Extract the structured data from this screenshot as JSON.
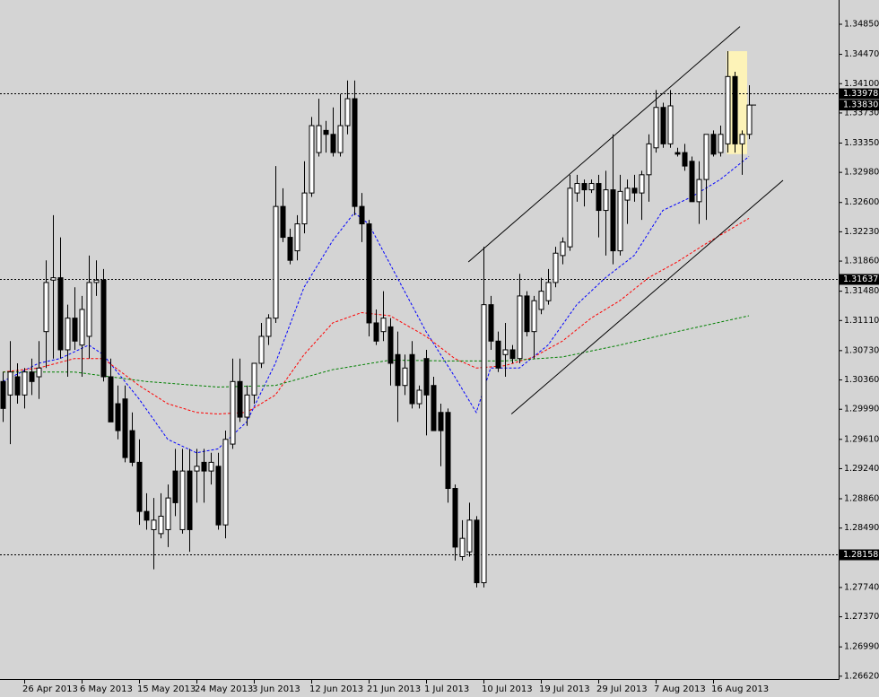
{
  "chart_data": {
    "type": "candlestick",
    "categories": [
      null,
      null,
      null,
      "26 Apr 2013",
      null,
      null,
      null,
      null,
      null,
      null,
      null,
      "6 May 2013",
      null,
      null,
      null,
      null,
      null,
      null,
      null,
      "15 May 2013",
      null,
      null,
      null,
      null,
      null,
      null,
      null,
      "24 May 2013",
      null,
      null,
      null,
      null,
      null,
      null,
      null,
      "3 Jun 2013",
      null,
      null,
      null,
      null,
      null,
      null,
      null,
      "12 Jun 2013",
      null,
      null,
      null,
      null,
      null,
      null,
      null,
      "21 Jun 2013",
      null,
      null,
      null,
      null,
      null,
      null,
      null,
      "1 Jul 2013",
      null,
      null,
      null,
      null,
      null,
      null,
      null,
      "10 Jul 2013",
      null,
      null,
      null,
      null,
      null,
      null,
      null,
      "19 Jul 2013",
      null,
      null,
      null,
      null,
      null,
      null,
      null,
      "29 Jul 2013",
      null,
      null,
      null,
      null,
      null,
      null,
      null,
      "7 Aug 2013",
      null,
      null,
      null,
      null,
      null,
      null,
      null,
      "16 Aug 2013",
      null,
      null,
      null,
      null,
      null
    ],
    "open": [
      1.3034,
      1.3017,
      1.304,
      1.3017,
      1.3046,
      1.304,
      1.3097,
      1.3162,
      1.3165,
      1.3074,
      1.3114,
      1.308,
      1.3091,
      1.3159,
      1.3162,
      1.304,
      1.3006,
      1.3012,
      1.2972,
      1.2932,
      1.287,
      1.2847,
      1.2842,
      1.2847,
      1.2921,
      1.2847,
      1.2921,
      1.2921,
      1.2932,
      1.2921,
      1.2927,
      1.2853,
      1.2955,
      1.3034,
      1.2989,
      1.3017,
      1.3057,
      1.3091,
      1.3114,
      1.3255,
      1.3216,
      1.3199,
      1.3233,
      1.3272,
      1.3323,
      1.3351,
      1.3346,
      1.3323,
      1.3357,
      1.3391,
      1.3255,
      1.3233,
      1.3108,
      1.3097,
      1.3103,
      1.3068,
      1.3029,
      1.3068,
      1.3006,
      1.3063,
      1.3029,
      1.2995,
      1.2995,
      1.2899,
      1.2813,
      1.2819,
      1.2859,
      1.278,
      1.3131,
      1.3085,
      1.3068,
      1.3074,
      1.3063,
      1.3142,
      1.3097,
      1.3125,
      1.3136,
      1.3159,
      1.3193,
      1.3204,
      1.3272,
      1.3284,
      1.3276,
      1.3284,
      1.325,
      1.3276,
      1.3199,
      1.3263,
      1.3278,
      1.3272,
      1.3295,
      1.3329,
      1.338,
      1.3334,
      1.3323,
      1.3323,
      1.3312,
      1.3261,
      1.3289,
      1.3346,
      1.3323,
      1.3334,
      1.3419,
      1.3334,
      1.3346
    ],
    "high": [
      1.3046,
      1.3085,
      1.3057,
      1.3051,
      1.3063,
      1.3085,
      1.3187,
      1.3244,
      1.3216,
      1.3131,
      1.3153,
      1.3142,
      1.3193,
      1.3187,
      1.3176,
      1.3063,
      1.3029,
      1.3029,
      1.2995,
      1.2961,
      1.2893,
      1.2887,
      1.2893,
      1.2904,
      1.2949,
      1.2949,
      1.2949,
      1.2949,
      1.2949,
      1.2944,
      1.2944,
      1.2972,
      1.3063,
      1.3063,
      1.3029,
      1.3057,
      1.3108,
      1.3119,
      1.3306,
      1.3278,
      1.3227,
      1.3244,
      1.3312,
      1.3368,
      1.3391,
      1.3363,
      1.338,
      1.3397,
      1.3414,
      1.3414,
      1.3272,
      1.3238,
      1.3125,
      1.3148,
      1.3114,
      1.3097,
      1.3068,
      1.3085,
      1.3029,
      1.3074,
      1.304,
      1.3006,
      1.3,
      1.2904,
      1.2859,
      1.2881,
      1.2864,
      1.3204,
      1.3142,
      1.3097,
      1.3108,
      1.308,
      1.317,
      1.3148,
      1.3142,
      1.3165,
      1.3176,
      1.3204,
      1.3216,
      1.3295,
      1.3295,
      1.3289,
      1.3289,
      1.3295,
      1.33,
      1.3346,
      1.3295,
      1.3289,
      1.3295,
      1.33,
      1.3346,
      1.3402,
      1.3386,
      1.3402,
      1.3329,
      1.3334,
      1.3318,
      1.3312,
      1.3346,
      1.3351,
      1.3357,
      1.3451,
      1.3425,
      1.3351,
      1.3408
    ],
    "low": [
      1.2983,
      1.2955,
      1.3006,
      1.3,
      1.3017,
      1.3012,
      1.3051,
      1.3063,
      1.3063,
      1.304,
      1.3074,
      1.304,
      1.3063,
      1.3142,
      1.3034,
      1.2983,
      1.2961,
      1.2932,
      1.2927,
      1.2853,
      1.2847,
      1.2797,
      1.2836,
      1.2825,
      1.2864,
      1.2842,
      1.2819,
      1.2881,
      1.2881,
      1.2904,
      1.2847,
      1.2836,
      1.2949,
      1.2983,
      1.2978,
      1.3006,
      1.3051,
      1.308,
      1.3108,
      1.321,
      1.3182,
      1.3187,
      1.3221,
      1.3267,
      1.3318,
      1.3323,
      1.3318,
      1.3318,
      1.3346,
      1.3244,
      1.321,
      1.3091,
      1.308,
      1.3085,
      1.3029,
      1.2983,
      1.3017,
      1.3,
      1.3,
      1.2966,
      1.2972,
      1.2927,
      1.2881,
      1.2808,
      1.2808,
      1.2813,
      1.2774,
      1.2774,
      1.3074,
      1.3046,
      1.304,
      1.3057,
      1.3057,
      1.3091,
      1.3063,
      1.3119,
      1.3131,
      1.3153,
      1.3182,
      1.3199,
      1.3261,
      1.3255,
      1.3272,
      1.3216,
      1.3193,
      1.3182,
      1.3193,
      1.3233,
      1.3261,
      1.3238,
      1.3261,
      1.3323,
      1.3329,
      1.3329,
      1.3318,
      1.33,
      1.3261,
      1.3233,
      1.3238,
      1.3318,
      1.3318,
      1.3323,
      1.3323,
      1.3295,
      1.334
    ],
    "close": [
      1.3,
      1.3046,
      1.3017,
      1.3046,
      1.3034,
      1.3051,
      1.3159,
      1.3165,
      1.3074,
      1.3114,
      1.3085,
      1.3125,
      1.3159,
      1.3162,
      1.304,
      1.2983,
      1.2972,
      1.2938,
      1.2932,
      1.287,
      1.2859,
      1.2859,
      1.2864,
      1.2887,
      1.2881,
      1.2921,
      1.2847,
      1.2927,
      1.2921,
      1.2932,
      1.2853,
      1.2961,
      1.3034,
      1.2989,
      1.3017,
      1.3057,
      1.3091,
      1.3114,
      1.3255,
      1.3216,
      1.3187,
      1.3233,
      1.3272,
      1.3357,
      1.3357,
      1.3346,
      1.3323,
      1.3357,
      1.3391,
      1.3255,
      1.3233,
      1.3108,
      1.3085,
      1.3114,
      1.3057,
      1.3029,
      1.3051,
      1.3006,
      1.3023,
      1.3017,
      1.2972,
      1.2972,
      1.2899,
      1.2825,
      1.2836,
      1.2859,
      1.278,
      1.3131,
      1.3085,
      1.3051,
      1.3074,
      1.3063,
      1.3142,
      1.3097,
      1.3136,
      1.3148,
      1.3159,
      1.3196,
      1.321,
      1.3278,
      1.3284,
      1.3276,
      1.3284,
      1.325,
      1.3276,
      1.3199,
      1.3274,
      1.3278,
      1.3272,
      1.3295,
      1.3334,
      1.338,
      1.3334,
      1.3382,
      1.3321,
      1.3306,
      1.3261,
      1.3289,
      1.3346,
      1.3321,
      1.3346,
      1.3419,
      1.3334,
      1.3346,
      1.3383
    ],
    "up_color": "#ffffff",
    "down_color": "#000000",
    "ylim": [
      1.26584,
      1.35156
    ],
    "yticks": [
      {
        "value": 1.3485,
        "label": "1.34850"
      },
      {
        "value": 1.3447,
        "label": "1.34470"
      },
      {
        "value": 1.341,
        "label": "1.34100"
      },
      {
        "value": 1.3373,
        "label": "1.33730"
      },
      {
        "value": 1.3335,
        "label": "1.33350"
      },
      {
        "value": 1.3298,
        "label": "1.32980"
      },
      {
        "value": 1.326,
        "label": "1.32600"
      },
      {
        "value": 1.3223,
        "label": "1.32230"
      },
      {
        "value": 1.3186,
        "label": "1.31860"
      },
      {
        "value": 1.3148,
        "label": "1.31480"
      },
      {
        "value": 1.3111,
        "label": "1.31110"
      },
      {
        "value": 1.3073,
        "label": "1.30730"
      },
      {
        "value": 1.3036,
        "label": "1.30360"
      },
      {
        "value": 1.2999,
        "label": "1.29990"
      },
      {
        "value": 1.2961,
        "label": "1.29610"
      },
      {
        "value": 1.2924,
        "label": "1.29240"
      },
      {
        "value": 1.2886,
        "label": "1.28860"
      },
      {
        "value": 1.2849,
        "label": "1.28490"
      },
      {
        "value": 1.2774,
        "label": "1.27740"
      },
      {
        "value": 1.2737,
        "label": "1.27370"
      },
      {
        "value": 1.2699,
        "label": "1.26990"
      },
      {
        "value": 1.2662,
        "label": "1.26620"
      }
    ],
    "moving_averages": [
      {
        "color": "#0000ff",
        "x": [
          0,
          5,
          8,
          12,
          14,
          19,
          23,
          27,
          30,
          34,
          38,
          42,
          46,
          49,
          51,
          55,
          59,
          63,
          66,
          68,
          72,
          76,
          80,
          84,
          88,
          92,
          96,
          100,
          104
        ],
        "values": [
          1.3034,
          1.3057,
          1.3063,
          1.308,
          1.3068,
          1.3012,
          1.2961,
          1.2944,
          1.2949,
          1.2983,
          1.3057,
          1.3153,
          1.3212,
          1.3247,
          1.3233,
          1.3165,
          1.3097,
          1.304,
          1.2995,
          1.3051,
          1.3051,
          1.308,
          1.3131,
          1.3165,
          1.3193,
          1.325,
          1.3267,
          1.3289,
          1.3318
        ]
      },
      {
        "color": "#ff0000",
        "x": [
          0,
          5,
          10,
          14,
          19,
          23,
          27,
          30,
          34,
          38,
          42,
          46,
          50,
          54,
          59,
          63,
          66,
          70,
          74,
          78,
          82,
          86,
          90,
          94,
          98,
          104
        ],
        "values": [
          1.3046,
          1.3051,
          1.3063,
          1.3063,
          1.3029,
          1.3006,
          1.2995,
          1.2993,
          1.2995,
          1.3017,
          1.3068,
          1.3108,
          1.3121,
          1.3117,
          1.3091,
          1.3063,
          1.3051,
          1.3054,
          1.3065,
          1.3085,
          1.3114,
          1.3136,
          1.3165,
          1.3185,
          1.3208,
          1.324
        ]
      },
      {
        "color": "#008000",
        "x": [
          0,
          10,
          20,
          30,
          38,
          46,
          54,
          62,
          70,
          78,
          86,
          94,
          104
        ],
        "values": [
          1.3046,
          1.3046,
          1.3034,
          1.3027,
          1.3029,
          1.3049,
          1.3061,
          1.306,
          1.306,
          1.3065,
          1.308,
          1.3097,
          1.3117
        ]
      }
    ],
    "hlines": [
      1.33978,
      1.31637,
      1.28158
    ],
    "last_price": {
      "value": 1.3383,
      "label": "1.33830"
    },
    "trendlines": [
      {
        "x": [
          64.9,
          102.75
        ],
        "y": [
          1.3185,
          1.3482
        ]
      },
      {
        "x": [
          70.9,
          108.75
        ],
        "y": [
          1.2993,
          1.3288
        ]
      }
    ],
    "highlight": {
      "color": "#fdf3b8",
      "x": [
        100.9,
        103.75
      ],
      "y": [
        1.3321,
        1.3451
      ]
    }
  }
}
